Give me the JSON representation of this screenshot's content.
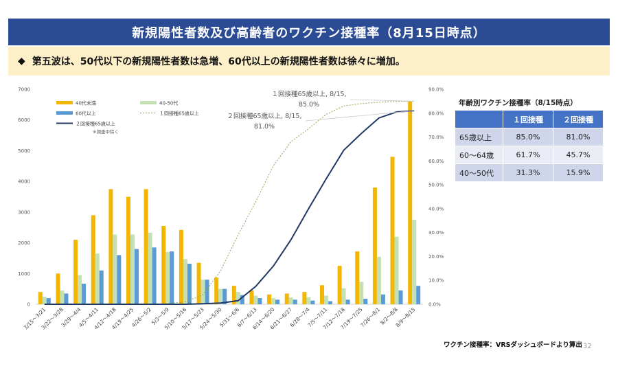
{
  "slide": {
    "title": "新規陽性者数及び高齢者のワクチン接種率（8月15日時点）",
    "subtitle_bullet": "◆",
    "subtitle": "第五波は、50代以下の新規陽性者数は急増、60代以上の新規陽性者数は徐々に増加。",
    "source": "ワクチン接種率：VRSダッシュボードより算出",
    "page_number": "32"
  },
  "colors": {
    "title_bg": "#2b4c94",
    "subtitle_bg": "#fdf0c8",
    "under40": "#f2b705",
    "age40_50": "#c5e0b4",
    "over60": "#5b9bd5",
    "dose1_line": "#8aa84b",
    "dose2_line": "#1f3864",
    "table_header": "#4472c4"
  },
  "chart_data": {
    "type": "bar",
    "categories": [
      "3/15～3/21",
      "3/22～3/28",
      "3/29～4/4",
      "4/5～4/11",
      "4/12～4/18",
      "4/19～4/25",
      "4/26～5/2",
      "5/3～5/9",
      "5/10～5/16",
      "5/17～5/23",
      "5/24～5/30",
      "5/31～6/6",
      "6/7～6/13",
      "6/14～6/20",
      "6/21～6/27",
      "6/28～7/4",
      "7/5～7/11",
      "7/12～7/18",
      "7/19～7/25",
      "7/26～8/1",
      "8/2～8/8",
      "8/9～8/15"
    ],
    "series": [
      {
        "name": "40代未満",
        "kind": "bar",
        "axis": "left",
        "values": [
          400,
          1000,
          2100,
          2900,
          3750,
          3500,
          3750,
          2550,
          2420,
          1350,
          870,
          600,
          450,
          320,
          350,
          400,
          620,
          1250,
          1720,
          3800,
          4800,
          6600
        ]
      },
      {
        "name": "40-50代",
        "kind": "bar",
        "axis": "left",
        "values": [
          250,
          450,
          950,
          1650,
          2270,
          2270,
          2330,
          1700,
          1470,
          800,
          500,
          400,
          280,
          200,
          220,
          230,
          280,
          520,
          730,
          1550,
          2200,
          2750
        ]
      },
      {
        "name": "60代以上",
        "kind": "bar",
        "axis": "left",
        "values": [
          200,
          350,
          670,
          1100,
          1600,
          1800,
          1850,
          1720,
          1320,
          800,
          500,
          300,
          200,
          150,
          150,
          120,
          100,
          150,
          180,
          320,
          450,
          600
        ]
      },
      {
        "name": "１回接種65歳以上",
        "kind": "line",
        "style": "dashed",
        "axis": "right",
        "values": [
          0,
          0,
          0,
          0,
          0,
          0,
          0.1,
          0.3,
          1.0,
          4.0,
          14.0,
          29.0,
          43.0,
          58.0,
          68.0,
          73.5,
          79.5,
          83.0,
          84.0,
          84.6,
          84.9,
          85.0
        ]
      },
      {
        "name": "２回接種65歳以上",
        "kind": "line",
        "style": "solid",
        "axis": "right",
        "values": [
          0,
          0,
          0,
          0,
          0,
          0,
          0,
          0,
          0,
          0.2,
          0.5,
          1.5,
          7.5,
          16.0,
          27.0,
          40.0,
          52.5,
          64.5,
          71.5,
          78.0,
          80.5,
          81.0
        ]
      }
    ],
    "ylim_left": [
      0,
      7000
    ],
    "yticks_left": [
      0,
      1000,
      2000,
      3000,
      4000,
      5000,
      6000,
      7000
    ],
    "ylim_right": [
      0,
      90
    ],
    "yticks_right": [
      "0.0%",
      "10.0%",
      "20.0%",
      "30.0%",
      "40.0%",
      "50.0%",
      "60.0%",
      "70.0%",
      "80.0%",
      "90.0%"
    ],
    "legend_note": "※調査中除く",
    "legend_position": "top-left",
    "annotations": [
      {
        "line1": "１回接種65歳以上, 8/15,",
        "line2": "85.0%"
      },
      {
        "line1": "２回接種65歳以上, 8/15,",
        "line2": "81.0%"
      }
    ]
  },
  "vaccine_table": {
    "title": "年齢別ワクチン接種率（8/15時点）",
    "headers": [
      "",
      "１回接種",
      "２回接種"
    ],
    "rows": [
      {
        "label": "65歳以上",
        "dose1": "85.0%",
        "dose2": "81.0%"
      },
      {
        "label": "60～64歳",
        "dose1": "61.7%",
        "dose2": "45.7%"
      },
      {
        "label": "40～50代",
        "dose1": "31.3%",
        "dose2": "15.9%"
      }
    ]
  }
}
